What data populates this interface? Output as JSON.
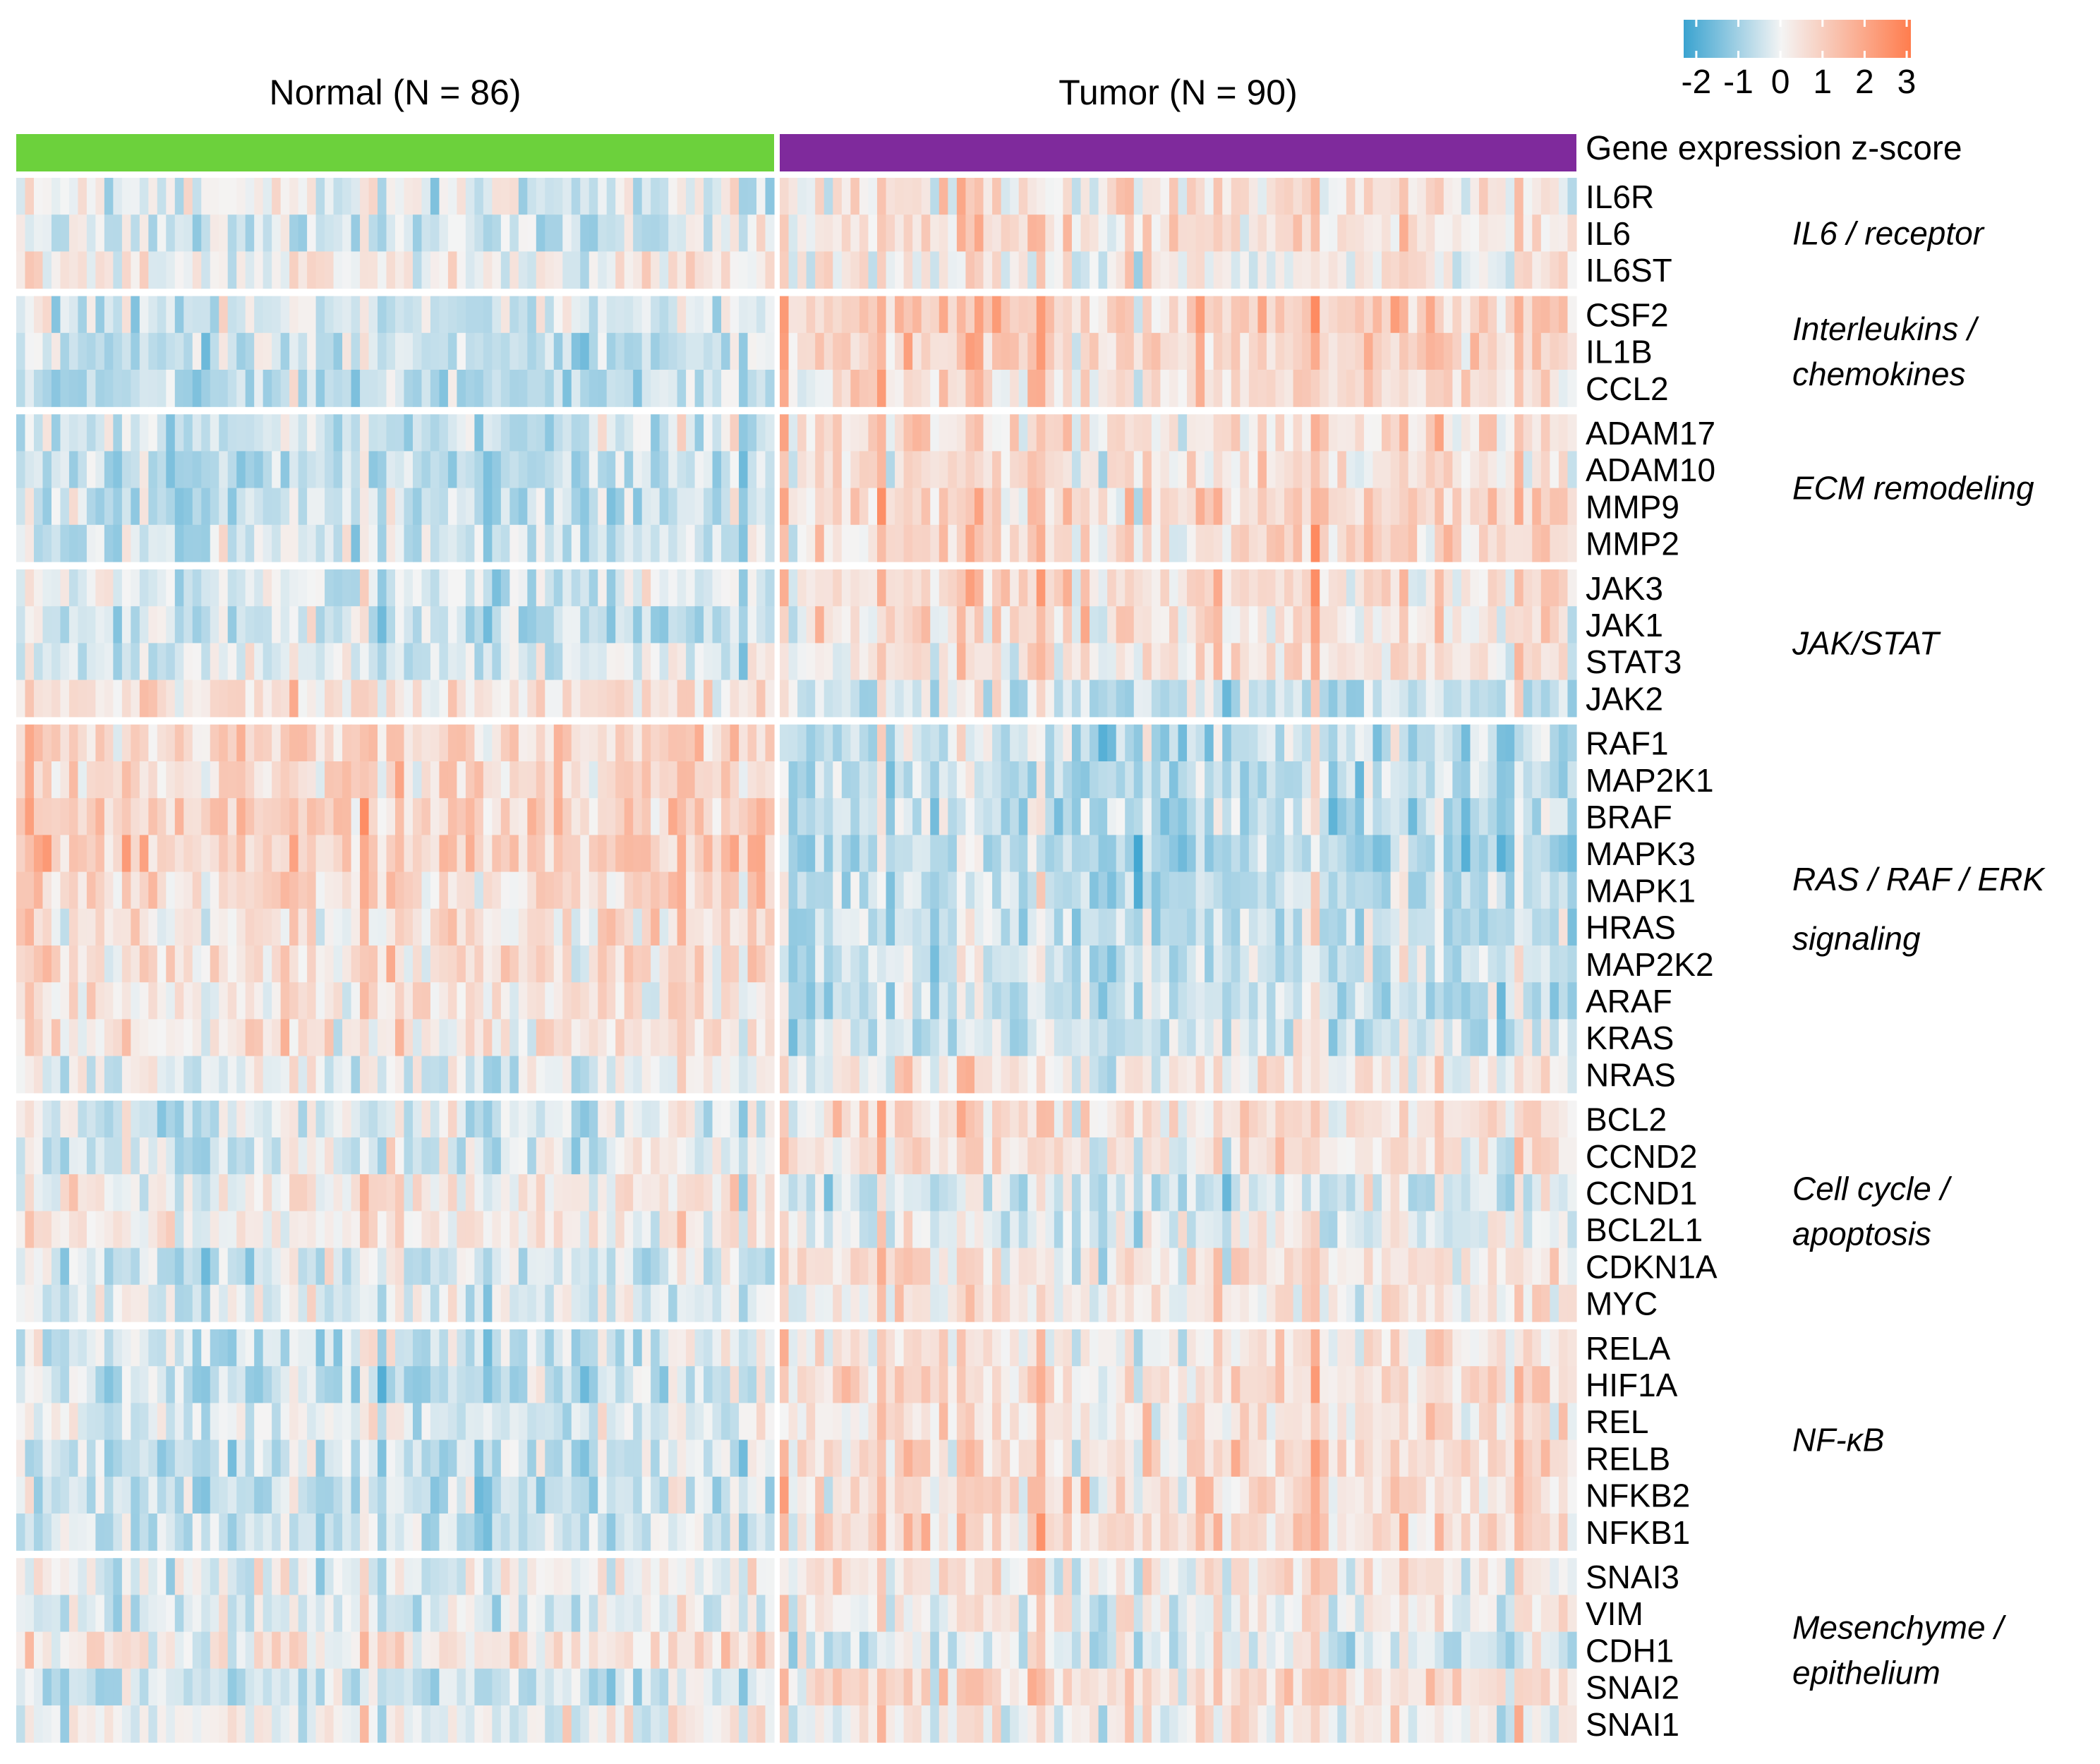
{
  "chart_data": {
    "type": "heatmap",
    "title": "",
    "legend": {
      "title": "Gene expression z-score",
      "ticks": [
        "-2",
        "-1",
        "0",
        "1",
        "2",
        "3"
      ],
      "range": [
        -2.3,
        3.1
      ],
      "colors": {
        "low": "#3aa3d0",
        "mid": "#f4f4f4",
        "high": "#ff7d4e"
      },
      "placement": "top-right"
    },
    "groups": [
      {
        "label": "Normal (N = 86)",
        "n": 86,
        "color": "#6cd13c"
      },
      {
        "label": "Tumor (N = 90)",
        "n": 90,
        "color": "#7f2a9c"
      }
    ],
    "note": "Cell values are approximated as per-gene group mean z-scores with sample-level variation",
    "modules": [
      {
        "label": [
          "IL6 / receptor"
        ],
        "genes": [
          {
            "name": "IL6R",
            "normal_mean": -0.2,
            "tumor_mean": 0.4
          },
          {
            "name": "IL6",
            "normal_mean": -0.4,
            "tumor_mean": 0.5
          },
          {
            "name": "IL6ST",
            "normal_mean": 0.1,
            "tumor_mean": 0.2
          }
        ]
      },
      {
        "label": [
          "Interleukins /",
          "chemokines"
        ],
        "genes": [
          {
            "name": "CSF2",
            "normal_mean": -0.4,
            "tumor_mean": 0.8
          },
          {
            "name": "IL1B",
            "normal_mean": -0.6,
            "tumor_mean": 0.8
          },
          {
            "name": "CCL2",
            "normal_mean": -0.7,
            "tumor_mean": 0.5
          }
        ]
      },
      {
        "label": [
          "ECM remodeling"
        ],
        "genes": [
          {
            "name": "ADAM17",
            "normal_mean": -0.4,
            "tumor_mean": 0.5
          },
          {
            "name": "ADAM10",
            "normal_mean": -0.6,
            "tumor_mean": 0.4
          },
          {
            "name": "MMP9",
            "normal_mean": -0.6,
            "tumor_mean": 0.7
          },
          {
            "name": "MMP2",
            "normal_mean": -0.4,
            "tumor_mean": 0.6
          }
        ]
      },
      {
        "label": [
          "JAK/STAT"
        ],
        "genes": [
          {
            "name": "JAK3",
            "normal_mean": -0.3,
            "tumor_mean": 0.6
          },
          {
            "name": "JAK1",
            "normal_mean": -0.5,
            "tumor_mean": 0.5
          },
          {
            "name": "STAT3",
            "normal_mean": -0.3,
            "tumor_mean": 0.4
          },
          {
            "name": "JAK2",
            "normal_mean": 0.3,
            "tumor_mean": -0.4
          }
        ]
      },
      {
        "label": [
          "RAS / RAF / ERK",
          "signaling"
        ],
        "genes": [
          {
            "name": "RAF1",
            "normal_mean": 0.6,
            "tumor_mean": -0.5
          },
          {
            "name": "MAP2K1",
            "normal_mean": 0.6,
            "tumor_mean": -0.6
          },
          {
            "name": "BRAF",
            "normal_mean": 0.8,
            "tumor_mean": -0.6
          },
          {
            "name": "MAPK3",
            "normal_mean": 0.8,
            "tumor_mean": -0.7
          },
          {
            "name": "MAPK1",
            "normal_mean": 0.6,
            "tumor_mean": -0.6
          },
          {
            "name": "HRAS",
            "normal_mean": 0.4,
            "tumor_mean": -0.5
          },
          {
            "name": "MAP2K2",
            "normal_mean": 0.5,
            "tumor_mean": -0.4
          },
          {
            "name": "ARAF",
            "normal_mean": 0.3,
            "tumor_mean": -0.5
          },
          {
            "name": "KRAS",
            "normal_mean": 0.3,
            "tumor_mean": -0.4
          },
          {
            "name": "NRAS",
            "normal_mean": -0.2,
            "tumor_mean": 0.2
          }
        ]
      },
      {
        "label": [
          "Cell cycle /",
          "apoptosis"
        ],
        "genes": [
          {
            "name": "BCL2",
            "normal_mean": -0.3,
            "tumor_mean": 0.5
          },
          {
            "name": "CCND2",
            "normal_mean": -0.3,
            "tumor_mean": 0.4
          },
          {
            "name": "CCND1",
            "normal_mean": 0.2,
            "tumor_mean": -0.3
          },
          {
            "name": "BCL2L1",
            "normal_mean": 0.2,
            "tumor_mean": -0.1
          },
          {
            "name": "CDKN1A",
            "normal_mean": -0.4,
            "tumor_mean": 0.4
          },
          {
            "name": "MYC",
            "normal_mean": -0.2,
            "tumor_mean": 0.3
          }
        ]
      },
      {
        "label": [
          "NF-κB"
        ],
        "genes": [
          {
            "name": "RELA",
            "normal_mean": -0.4,
            "tumor_mean": 0.3
          },
          {
            "name": "HIF1A",
            "normal_mean": -0.5,
            "tumor_mean": 0.6
          },
          {
            "name": "REL",
            "normal_mean": -0.2,
            "tumor_mean": 0.3
          },
          {
            "name": "RELB",
            "normal_mean": -0.6,
            "tumor_mean": 0.6
          },
          {
            "name": "NFKB2",
            "normal_mean": -0.6,
            "tumor_mean": 0.6
          },
          {
            "name": "NFKB1",
            "normal_mean": -0.5,
            "tumor_mean": 0.6
          }
        ]
      },
      {
        "label": [
          "Mesenchyme /",
          "epithelium"
        ],
        "genes": [
          {
            "name": "SNAI3",
            "normal_mean": -0.1,
            "tumor_mean": 0.3
          },
          {
            "name": "VIM",
            "normal_mean": -0.3,
            "tumor_mean": 0.2
          },
          {
            "name": "CDH1",
            "normal_mean": 0.3,
            "tumor_mean": -0.2
          },
          {
            "name": "SNAI2",
            "normal_mean": -0.5,
            "tumor_mean": 0.6
          },
          {
            "name": "SNAI1",
            "normal_mean": 0.0,
            "tumor_mean": 0.2
          }
        ]
      }
    ]
  }
}
